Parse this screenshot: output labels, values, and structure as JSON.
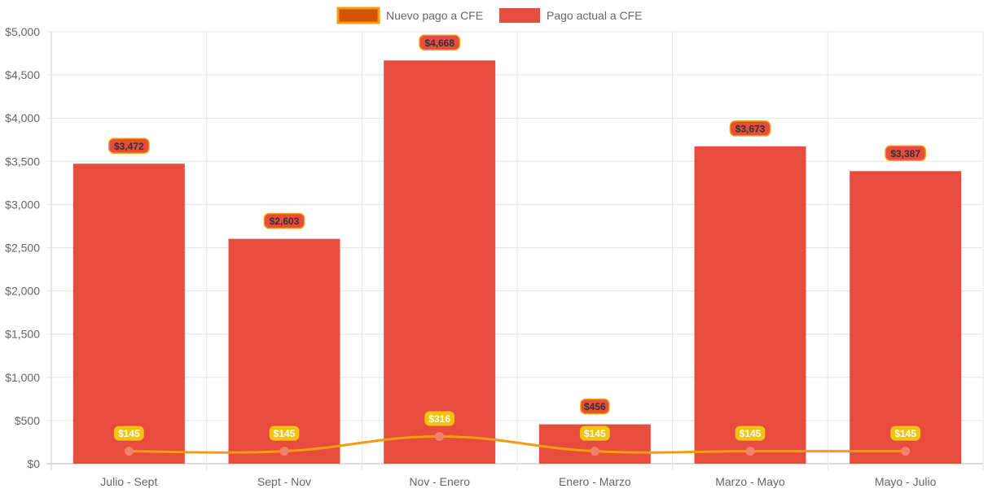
{
  "chart_data": {
    "type": "bar",
    "categories": [
      "Julio - Sept",
      "Sept - Nov",
      "Nov - Enero",
      "Enero - Marzo",
      "Marzo - Mayo",
      "Mayo - Julio"
    ],
    "series": [
      {
        "name": "Nuevo pago a CFE",
        "type": "line",
        "values": [
          145,
          145,
          316,
          145,
          145,
          145
        ],
        "labels": [
          "$145",
          "$145",
          "$316",
          "$145",
          "$145",
          "$145"
        ],
        "color": "#f39c12",
        "point_color": "#f0826e",
        "label_bg": "#f1c40f",
        "legend_fill": "#d35400"
      },
      {
        "name": "Pago actual a CFE",
        "type": "bar",
        "values": [
          3472,
          2603,
          4668,
          456,
          3673,
          3387
        ],
        "labels": [
          "$3,472",
          "$2,603",
          "$4,668",
          "$456",
          "$3,673",
          "$3,387"
        ],
        "color": "#e74c3c",
        "label_border": "#f39c12"
      }
    ],
    "y_ticks": [
      "$0",
      "$500",
      "$1,000",
      "$1,500",
      "$2,000",
      "$2,500",
      "$3,000",
      "$3,500",
      "$4,000",
      "$4,500",
      "$5,000"
    ],
    "ylim": [
      0,
      5000
    ],
    "y_step": 500,
    "grid": true,
    "legend_position": "top"
  }
}
